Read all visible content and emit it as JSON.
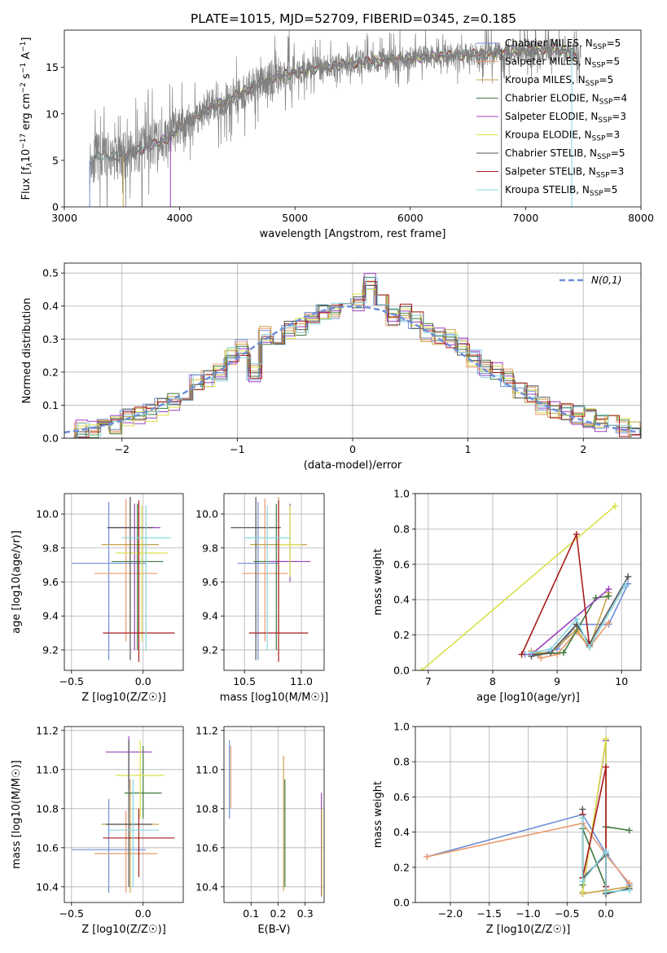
{
  "figure_title": "PLATE=1015, MJD=52709, FIBERID=0345, z=0.185",
  "series_legend": [
    {
      "label": "Chabrier MILES, N",
      "sub": "SSP",
      "tail": "=5",
      "color": "#6f8fd8"
    },
    {
      "label": "Salpeter MILES, N",
      "sub": "SSP",
      "tail": "=5",
      "color": "#ea9b6e"
    },
    {
      "label": "Kroupa MILES, N",
      "sub": "SSP",
      "tail": "=5",
      "color": "#c7a24a"
    },
    {
      "label": "Chabrier ELODIE, N",
      "sub": "SSP",
      "tail": "=4",
      "color": "#3f7a3f"
    },
    {
      "label": "Salpeter ELODIE, N",
      "sub": "SSP",
      "tail": "=3",
      "color": "#9b3fc0"
    },
    {
      "label": "Kroupa ELODIE, N",
      "sub": "SSP",
      "tail": "=3",
      "color": "#d9e04a"
    },
    {
      "label": "Chabrier STELIB, N",
      "sub": "SSP",
      "tail": "=5",
      "color": "#555555"
    },
    {
      "label": "Salpeter STELIB, N",
      "sub": "SSP",
      "tail": "=3",
      "color": "#a61c1c"
    },
    {
      "label": "Kroupa STELIB, N",
      "sub": "SSP",
      "tail": "=5",
      "color": "#86d4e0"
    }
  ],
  "chart_data": [
    {
      "id": "spectrum",
      "type": "line",
      "xlabel": "wavelength [Angstrom, rest frame]",
      "ylabel": "Flux [f",
      "ylabel_parts": [
        "Flux [f",
        "λ",
        "10",
        "−17",
        " erg cm",
        "−2",
        " s",
        "−1",
        " A",
        "−1",
        "]"
      ],
      "xlim": [
        3000,
        8000
      ],
      "ylim": [
        0,
        19
      ],
      "xticks": [
        3000,
        4000,
        5000,
        6000,
        7000,
        8000
      ],
      "yticks": [
        0,
        5,
        10,
        15
      ],
      "data_color": "#808080",
      "spectrum_trend": {
        "x": [
          3220,
          3300,
          3500,
          3700,
          3900,
          4000,
          4200,
          4400,
          4600,
          4800,
          5000,
          5300,
          5600,
          6000,
          6400,
          6700,
          7000,
          7200,
          7500
        ],
        "y": [
          4.9,
          5.5,
          5.4,
          6.3,
          7.4,
          8.5,
          10.2,
          11.4,
          12.7,
          13.9,
          14.4,
          15.1,
          15.6,
          16.0,
          16.3,
          16.5,
          16.8,
          17.0,
          16.2
        ]
      },
      "grid": false
    },
    {
      "id": "residuals",
      "type": "histogram",
      "xlabel": "(data-model)/error",
      "ylabel": "Normed distribution",
      "xlim": [
        -2.5,
        2.5
      ],
      "ylim": [
        0,
        0.53
      ],
      "xticks": [
        -2,
        -1,
        0,
        1,
        2
      ],
      "yticks": [
        0.0,
        0.1,
        0.2,
        0.3,
        0.4,
        0.5
      ],
      "grid": true,
      "reference_curve": {
        "name": "N(0,1)",
        "color": "#6f8fd8",
        "style": "dashed"
      },
      "bin_edges": [
        -2.5,
        -2.4,
        -2.3,
        -2.2,
        -2.1,
        -2.0,
        -1.9,
        -1.8,
        -1.7,
        -1.6,
        -1.5,
        -1.4,
        -1.3,
        -1.2,
        -1.1,
        -1.0,
        -0.9,
        -0.8,
        -0.7,
        -0.6,
        -0.5,
        -0.4,
        -0.3,
        -0.2,
        -0.1,
        0.0,
        0.1,
        0.2,
        0.3,
        0.4,
        0.5,
        0.6,
        0.7,
        0.8,
        0.9,
        1.0,
        1.1,
        1.2,
        1.3,
        1.4,
        1.5,
        1.6,
        1.7,
        1.8,
        1.9,
        2.0,
        2.1,
        2.2,
        2.3,
        2.4,
        2.5
      ],
      "base_density": [
        0.02,
        0.025,
        0.03,
        0.035,
        0.04,
        0.06,
        0.065,
        0.08,
        0.095,
        0.11,
        0.13,
        0.165,
        0.18,
        0.2,
        0.25,
        0.27,
        0.2,
        0.31,
        0.3,
        0.33,
        0.34,
        0.37,
        0.38,
        0.39,
        0.4,
        0.41,
        0.47,
        0.41,
        0.37,
        0.38,
        0.36,
        0.32,
        0.31,
        0.3,
        0.28,
        0.24,
        0.21,
        0.2,
        0.18,
        0.15,
        0.13,
        0.1,
        0.09,
        0.08,
        0.07,
        0.06,
        0.05,
        0.04,
        0.03,
        0.02
      ]
    },
    {
      "id": "age-vs-Z",
      "type": "errorbar",
      "xlabel": "Z [log10(Z/Z☉)]",
      "ylabel": "age  [log10(age/yr)]",
      "xlim": [
        -0.55,
        0.28
      ],
      "ylim": [
        9.08,
        10.12
      ],
      "xticks": [
        -0.5,
        0.0
      ],
      "yticks": [
        9.2,
        9.4,
        9.6,
        9.8,
        10.0
      ],
      "grid": true,
      "points": [
        {
          "x": -0.24,
          "y": 9.71,
          "xerr": 0.26,
          "ylo": 9.14,
          "yhi": 10.07
        },
        {
          "x": -0.12,
          "y": 9.65,
          "xerr": 0.22,
          "ylo": 9.25,
          "yhi": 10.09
        },
        {
          "x": -0.09,
          "y": 9.82,
          "xerr": 0.2,
          "ylo": 9.3,
          "yhi": 10.1
        },
        {
          "x": -0.04,
          "y": 9.72,
          "xerr": 0.18,
          "ylo": 9.2,
          "yhi": 10.06
        },
        {
          "x": -0.06,
          "y": 9.92,
          "xerr": 0.18,
          "ylo": 9.2,
          "yhi": 10.06
        },
        {
          "x": -0.01,
          "y": 9.77,
          "xerr": 0.18,
          "ylo": 9.25,
          "yhi": 10.05
        },
        {
          "x": -0.09,
          "y": 9.92,
          "xerr": 0.16,
          "ylo": 9.14,
          "yhi": 10.1
        },
        {
          "x": -0.03,
          "y": 9.3,
          "xerr": 0.25,
          "ylo": 9.13,
          "yhi": 10.08
        },
        {
          "x": 0.02,
          "y": 9.86,
          "xerr": 0.17,
          "ylo": 9.2,
          "yhi": 10.05
        }
      ]
    },
    {
      "id": "age-vs-mass",
      "type": "errorbar",
      "xlabel": "mass [log10(M/M☉)]",
      "ylabel": "",
      "xlim": [
        10.32,
        11.2
      ],
      "ylim": [
        9.08,
        10.12
      ],
      "xticks": [
        10.5,
        11.0
      ],
      "yticks": [
        9.2,
        9.4,
        9.6,
        9.8,
        10.0
      ],
      "grid": true,
      "points": [
        {
          "x": 10.62,
          "y": 9.71,
          "xerr": 0.18,
          "ylo": 9.14,
          "yhi": 10.07
        },
        {
          "x": 10.68,
          "y": 9.65,
          "xerr": 0.2,
          "ylo": 9.25,
          "yhi": 10.09
        },
        {
          "x": 10.8,
          "y": 9.82,
          "xerr": 0.25,
          "ylo": 9.3,
          "yhi": 10.1
        },
        {
          "x": 10.78,
          "y": 9.72,
          "xerr": 0.2,
          "ylo": 9.2,
          "yhi": 10.06
        },
        {
          "x": 10.9,
          "y": 9.72,
          "xerr": 0.18,
          "ylo": 9.6,
          "yhi": 10.06
        },
        {
          "x": 10.9,
          "y": 9.82,
          "xerr": 0.1,
          "ylo": 9.63,
          "yhi": 10.05
        },
        {
          "x": 10.6,
          "y": 9.92,
          "xerr": 0.22,
          "ylo": 9.14,
          "yhi": 10.1
        },
        {
          "x": 10.8,
          "y": 9.3,
          "xerr": 0.26,
          "ylo": 9.13,
          "yhi": 10.08
        },
        {
          "x": 10.7,
          "y": 9.86,
          "xerr": 0.2,
          "ylo": 9.2,
          "yhi": 10.05
        }
      ]
    },
    {
      "id": "weight-vs-age",
      "type": "line",
      "xlabel": "age  [log10(age/yr)]",
      "ylabel": "mass weight",
      "xlim": [
        6.8,
        10.3
      ],
      "ylim": [
        0.0,
        1.0
      ],
      "xticks": [
        7,
        8,
        9,
        10
      ],
      "yticks": [
        0.0,
        0.2,
        0.4,
        0.6,
        0.8,
        1.0
      ],
      "grid": true,
      "series": [
        {
          "x": [
            8.5,
            8.7,
            9.0,
            9.3,
            9.8,
            10.1
          ],
          "y": [
            0.09,
            0.09,
            0.12,
            0.26,
            0.26,
            0.49
          ]
        },
        {
          "x": [
            8.6,
            8.75,
            9.0,
            9.3,
            9.5,
            9.8
          ],
          "y": [
            0.11,
            0.07,
            0.09,
            0.22,
            0.13,
            0.27
          ]
        },
        {
          "x": [
            8.6,
            8.9,
            9.3,
            9.5,
            9.8
          ],
          "y": [
            0.1,
            0.1,
            0.23,
            0.13,
            0.44
          ]
        },
        {
          "x": [
            8.6,
            9.1,
            9.6,
            9.8
          ],
          "y": [
            0.09,
            0.1,
            0.41,
            0.42
          ]
        },
        {
          "x": [
            8.6,
            9.8
          ],
          "y": [
            0.09,
            0.46
          ]
        },
        {
          "x": [
            6.9,
            9.9
          ],
          "y": [
            0.0,
            0.93
          ]
        },
        {
          "x": [
            8.6,
            8.9,
            9.3,
            9.5,
            10.1
          ],
          "y": [
            0.08,
            0.1,
            0.26,
            0.15,
            0.53
          ]
        },
        {
          "x": [
            8.45,
            9.3,
            9.5
          ],
          "y": [
            0.09,
            0.77,
            0.14
          ]
        },
        {
          "x": [
            8.6,
            8.9,
            9.3,
            9.5,
            10.05
          ],
          "y": [
            0.1,
            0.12,
            0.29,
            0.13,
            0.48
          ]
        }
      ]
    },
    {
      "id": "mass-vs-Z",
      "type": "errorbar",
      "xlabel": "Z [log10(Z/Z☉)]",
      "ylabel": "mass [log10(M/M☉)]",
      "xlim": [
        -0.55,
        0.28
      ],
      "ylim": [
        10.32,
        11.22
      ],
      "xticks": [
        -0.5,
        0.0
      ],
      "yticks": [
        10.4,
        10.6,
        10.8,
        11.0,
        11.2
      ],
      "grid": true,
      "points": [
        {
          "x": -0.24,
          "y": 10.59,
          "xerr": 0.26,
          "ylo": 10.37,
          "yhi": 10.85
        },
        {
          "x": -0.12,
          "y": 10.57,
          "xerr": 0.22,
          "ylo": 10.37,
          "yhi": 10.79
        },
        {
          "x": -0.09,
          "y": 10.72,
          "xerr": 0.2,
          "ylo": 10.37,
          "yhi": 10.95
        },
        {
          "x": 0.0,
          "y": 10.88,
          "xerr": 0.13,
          "ylo": 10.75,
          "yhi": 11.12
        },
        {
          "x": -0.1,
          "y": 11.09,
          "xerr": 0.16,
          "ylo": 10.9,
          "yhi": 11.17
        },
        {
          "x": -0.02,
          "y": 10.97,
          "xerr": 0.17,
          "ylo": 10.75,
          "yhi": 11.15
        },
        {
          "x": -0.1,
          "y": 10.72,
          "xerr": 0.16,
          "ylo": 10.4,
          "yhi": 11.15
        },
        {
          "x": -0.03,
          "y": 10.65,
          "xerr": 0.25,
          "ylo": 10.45,
          "yhi": 10.8
        },
        {
          "x": -0.07,
          "y": 10.69,
          "xerr": 0.18,
          "ylo": 10.4,
          "yhi": 10.95
        }
      ]
    },
    {
      "id": "mass-vs-EBV",
      "type": "errorbar",
      "xlabel": "E(B-V)",
      "ylabel": "",
      "xlim": [
        0.0,
        0.37
      ],
      "ylim": [
        10.32,
        11.22
      ],
      "xticks": [
        0.1,
        0.2,
        0.3
      ],
      "yticks": [
        10.4,
        10.6,
        10.8,
        11.0,
        11.2
      ],
      "grid": true,
      "points": [
        {
          "x": 0.02,
          "y": 10.95,
          "xerr": 0.0,
          "ylo": 10.75,
          "yhi": 11.15
        },
        {
          "x": 0.025,
          "y": 11.0,
          "xerr": 0.0,
          "ylo": 10.8,
          "yhi": 11.12
        },
        {
          "x": 0.22,
          "y": 10.7,
          "xerr": 0.0,
          "ylo": 10.38,
          "yhi": 11.07
        },
        {
          "x": 0.225,
          "y": 10.65,
          "xerr": 0.0,
          "ylo": 10.4,
          "yhi": 10.95
        },
        {
          "x": 0.36,
          "y": 10.6,
          "xerr": 0.0,
          "ylo": 10.35,
          "yhi": 10.88
        },
        {
          "x": 0.362,
          "y": 10.55,
          "xerr": 0.0,
          "ylo": 10.35,
          "yhi": 10.8
        }
      ]
    },
    {
      "id": "weight-vs-Z",
      "type": "line",
      "xlabel": "Z [log10(Z/Z☉)]",
      "ylabel": "mass weight",
      "xlim": [
        -2.45,
        0.45
      ],
      "ylim": [
        0.0,
        1.0
      ],
      "xticks": [
        -2.0,
        -1.5,
        -1.0,
        -0.5,
        0.0
      ],
      "yticks": [
        0.0,
        0.2,
        0.4,
        0.6,
        0.8,
        1.0
      ],
      "grid": true,
      "series": [
        {
          "x": [
            -2.3,
            -0.3,
            0.0,
            0.3
          ],
          "y": [
            0.26,
            0.5,
            0.28,
            0.1
          ]
        },
        {
          "x": [
            -2.3,
            -0.3,
            0.0,
            0.3
          ],
          "y": [
            0.26,
            0.45,
            0.27,
            0.11
          ]
        },
        {
          "x": [
            -0.3,
            0.0,
            0.3
          ],
          "y": [
            0.05,
            0.07,
            0.09
          ]
        },
        {
          "x": [
            -0.3,
            -0.3,
            0.0,
            0.0,
            0.3
          ],
          "y": [
            0.1,
            0.42,
            0.09,
            0.43,
            0.41
          ]
        },
        {
          "x": [
            -0.3,
            0.0,
            0.0
          ],
          "y": [
            0.06,
            0.92,
            0.05
          ]
        },
        {
          "x": [
            -0.3,
            0.0,
            0.0
          ],
          "y": [
            0.06,
            0.93,
            0.06
          ]
        },
        {
          "x": [
            -0.3,
            -0.3,
            0.0,
            0.0,
            0.3
          ],
          "y": [
            0.53,
            0.14,
            0.27,
            0.05,
            0.08
          ]
        },
        {
          "x": [
            -0.3,
            -0.3,
            0.0,
            0.0
          ],
          "y": [
            0.5,
            0.14,
            0.77,
            0.09
          ]
        },
        {
          "x": [
            -0.3,
            -0.3,
            0.0,
            0.0,
            0.3
          ],
          "y": [
            0.48,
            0.12,
            0.29,
            0.06,
            0.07
          ]
        }
      ]
    }
  ]
}
